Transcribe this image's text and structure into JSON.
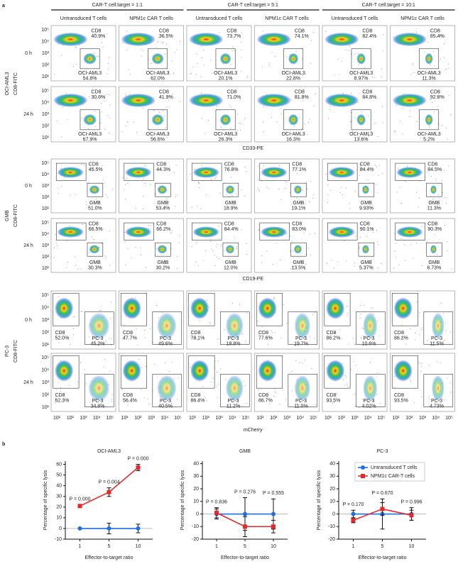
{
  "panel_a": {
    "label": "a",
    "column_groups": [
      "CAR-T cell:target = 1:1",
      "CAR-T cell:target = 5:1",
      "CAR-T cell:target = 10:1"
    ],
    "column_headers": [
      "Untransduced T cells",
      "NPM1c CAR T cells",
      "Untransduced T cells",
      "NPM1c CAR T cells",
      "Untransduced T cells",
      "NPM1c CAR T cells"
    ],
    "x_ticks": [
      "10¹",
      "10²",
      "10³",
      "10⁴",
      "10⁵"
    ],
    "y_ticks": [
      "10⁵",
      "10⁴",
      "10³",
      "10²",
      "10¹"
    ],
    "groups": [
      {
        "name": "OCI-AML3",
        "y_axis_label": "CD8-FITC",
        "x_axis_label": "CD33-PE",
        "rows": [
          {
            "time": "0 h",
            "plots": [
              {
                "gates": [
                  {
                    "label": "CD8",
                    "percent": "40.9%"
                  },
                  {
                    "label": "OCI-AML3",
                    "percent": "54.8%"
                  }
                ]
              },
              {
                "gates": [
                  {
                    "label": "CD8",
                    "percent": "36.5%"
                  },
                  {
                    "label": "OCI-AML3",
                    "percent": "62.0%"
                  }
                ]
              },
              {
                "gates": [
                  {
                    "label": "CD8",
                    "percent": "73.7%"
                  },
                  {
                    "label": "OCI-AML3",
                    "percent": "20.1%"
                  }
                ]
              },
              {
                "gates": [
                  {
                    "label": "CD8",
                    "percent": "74.1%"
                  },
                  {
                    "label": "OCI-AML3",
                    "percent": "22.8%"
                  }
                ]
              },
              {
                "gates": [
                  {
                    "label": "CD8",
                    "percent": "82.4%"
                  },
                  {
                    "label": "OCI-AML3",
                    "percent": "8.97%"
                  }
                ]
              },
              {
                "gates": [
                  {
                    "label": "CD8",
                    "percent": "85.4%"
                  },
                  {
                    "label": "OCI-AML3",
                    "percent": "11.3%"
                  }
                ]
              }
            ]
          },
          {
            "time": "24 h",
            "plots": [
              {
                "gates": [
                  {
                    "label": "CD8",
                    "percent": "30.6%"
                  },
                  {
                    "label": "OCI-AML3",
                    "percent": "67.9%"
                  }
                ]
              },
              {
                "gates": [
                  {
                    "label": "CD8",
                    "percent": "41.9%"
                  },
                  {
                    "label": "OCI-AML3",
                    "percent": "56.6%"
                  }
                ]
              },
              {
                "gates": [
                  {
                    "label": "CD8",
                    "percent": "71.0%"
                  },
                  {
                    "label": "OCI-AML3",
                    "percent": "26.3%"
                  }
                ]
              },
              {
                "gates": [
                  {
                    "label": "CD8",
                    "percent": "81.8%"
                  },
                  {
                    "label": "OCI-AML3",
                    "percent": "16.3%"
                  }
                ]
              },
              {
                "gates": [
                  {
                    "label": "CD8",
                    "percent": "84.8%"
                  },
                  {
                    "label": "OCI-AML3",
                    "percent": "13.6%"
                  }
                ]
              },
              {
                "gates": [
                  {
                    "label": "CD8",
                    "percent": "92.8%"
                  },
                  {
                    "label": "OCI-AML3",
                    "percent": "5.2%"
                  }
                ]
              }
            ]
          }
        ]
      },
      {
        "name": "GMB",
        "y_axis_label": "CD8-FITC",
        "x_axis_label": "CD19-PE",
        "rows": [
          {
            "time": "0 h",
            "plots": [
              {
                "gates": [
                  {
                    "label": "CD8",
                    "percent": "45.5%"
                  },
                  {
                    "label": "GMB",
                    "percent": "51.0%"
                  }
                ]
              },
              {
                "gates": [
                  {
                    "label": "CD8",
                    "percent": "44.3%"
                  },
                  {
                    "label": "GMB",
                    "percent": "53.4%"
                  }
                ]
              },
              {
                "gates": [
                  {
                    "label": "CD8",
                    "percent": "76.8%"
                  },
                  {
                    "label": "GMB",
                    "percent": "18.9%"
                  }
                ]
              },
              {
                "gates": [
                  {
                    "label": "CD8",
                    "percent": "77.1%"
                  },
                  {
                    "label": "GMB",
                    "percent": "19.1%"
                  }
                ]
              },
              {
                "gates": [
                  {
                    "label": "CD8",
                    "percent": "84.4%"
                  },
                  {
                    "label": "GMB",
                    "percent": "9.93%"
                  }
                ]
              },
              {
                "gates": [
                  {
                    "label": "CD8",
                    "percent": "84.5%"
                  },
                  {
                    "label": "GMB",
                    "percent": "11.3%"
                  }
                ]
              }
            ]
          },
          {
            "time": "24 h",
            "plots": [
              {
                "gates": [
                  {
                    "label": "CD8",
                    "percent": "66.5%"
                  },
                  {
                    "label": "GMB",
                    "percent": "30.3%"
                  }
                ]
              },
              {
                "gates": [
                  {
                    "label": "CD8",
                    "percent": "66.2%"
                  },
                  {
                    "label": "GMB",
                    "percent": "30.2%"
                  }
                ]
              },
              {
                "gates": [
                  {
                    "label": "CD8",
                    "percent": "84.4%"
                  },
                  {
                    "label": "GMB",
                    "percent": "12.0%"
                  }
                ]
              },
              {
                "gates": [
                  {
                    "label": "CD8",
                    "percent": "83.0%"
                  },
                  {
                    "label": "GMB",
                    "percent": "13.5%"
                  }
                ]
              },
              {
                "gates": [
                  {
                    "label": "CD8",
                    "percent": "90.1%"
                  },
                  {
                    "label": "GMB",
                    "percent": "5.37%"
                  }
                ]
              },
              {
                "gates": [
                  {
                    "label": "CD8",
                    "percent": "90.3%"
                  },
                  {
                    "label": "GMB",
                    "percent": "6.73%"
                  }
                ]
              }
            ]
          }
        ]
      },
      {
        "name": "PC-3",
        "y_axis_label": "CD8-FITC",
        "x_axis_label": "mCherry",
        "rows": [
          {
            "time": "0 h",
            "plots": [
              {
                "gates": [
                  {
                    "label": "CD8",
                    "percent": "52.0%"
                  },
                  {
                    "label": "PC-3",
                    "percent": "45.2%"
                  }
                ]
              },
              {
                "gates": [
                  {
                    "label": "CD8",
                    "percent": "47.7%"
                  },
                  {
                    "label": "PC-3",
                    "percent": "49.6%"
                  }
                ]
              },
              {
                "gates": [
                  {
                    "label": "CD8",
                    "percent": "78.1%"
                  },
                  {
                    "label": "PC-3",
                    "percent": "18.8%"
                  }
                ]
              },
              {
                "gates": [
                  {
                    "label": "CD8",
                    "percent": "77.6%"
                  },
                  {
                    "label": "PC-3",
                    "percent": "19.7%"
                  }
                ]
              },
              {
                "gates": [
                  {
                    "label": "CD8",
                    "percent": "86.2%"
                  },
                  {
                    "label": "PC-3",
                    "percent": "10.6%"
                  }
                ]
              },
              {
                "gates": [
                  {
                    "label": "CD8",
                    "percent": "86.2%"
                  },
                  {
                    "label": "PC-3",
                    "percent": "11.5%"
                  }
                ]
              }
            ]
          },
          {
            "time": "24 h",
            "plots": [
              {
                "gates": [
                  {
                    "label": "CD8",
                    "percent": "62.3%"
                  },
                  {
                    "label": "PC-3",
                    "percent": "34.8%"
                  }
                ]
              },
              {
                "gates": [
                  {
                    "label": "CD8",
                    "percent": "56.4%"
                  },
                  {
                    "label": "PC-3",
                    "percent": "40.5%"
                  }
                ]
              },
              {
                "gates": [
                  {
                    "label": "CD8",
                    "percent": "86.4%"
                  },
                  {
                    "label": "PC-3",
                    "percent": "11.2%"
                  }
                ]
              },
              {
                "gates": [
                  {
                    "label": "CD8",
                    "percent": "86.7%"
                  },
                  {
                    "label": "PC-3",
                    "percent": "11.0%"
                  }
                ]
              },
              {
                "gates": [
                  {
                    "label": "CD8",
                    "percent": "93.5%"
                  },
                  {
                    "label": "PC-3",
                    "percent": "4.02%"
                  }
                ]
              },
              {
                "gates": [
                  {
                    "label": "CD8",
                    "percent": "93.5%"
                  },
                  {
                    "label": "PC-3",
                    "percent": "4.73%"
                  }
                ]
              }
            ]
          }
        ]
      }
    ]
  },
  "panel_b": {
    "label": "b"
  },
  "chart_data": [
    {
      "type": "line",
      "title": "OCI-AML3",
      "x_label": "Effector-to-target ratio",
      "y_label": "Percentage of specific lysis",
      "categories": [
        "1",
        "5",
        "10"
      ],
      "ylim": [
        -10,
        63
      ],
      "yticks": [
        -10,
        0,
        10,
        20,
        30,
        40,
        50,
        60
      ],
      "series": [
        {
          "color": "#1f6fe0",
          "marker": "circle",
          "values": [
            0,
            0,
            0
          ],
          "errors": [
            0,
            5,
            4
          ]
        },
        {
          "color": "#e32a2a",
          "marker": "square",
          "values": [
            21,
            34,
            57
          ],
          "errors": [
            1,
            4,
            3
          ]
        }
      ],
      "annotations": [
        "P = 0.000",
        "P = 0.004",
        "P = 0.000"
      ]
    },
    {
      "type": "line",
      "title": "GMB",
      "x_label": "Effector-to-target ratio",
      "y_label": "Percentage of specific lysis",
      "categories": [
        "1",
        "5",
        "10"
      ],
      "ylim": [
        -20,
        42
      ],
      "yticks": [
        -20,
        -10,
        0,
        10,
        20,
        30,
        40
      ],
      "series": [
        {
          "color": "#1f6fe0",
          "marker": "circle",
          "values": [
            0,
            0,
            0
          ],
          "errors": [
            4,
            13,
            12
          ]
        },
        {
          "color": "#e32a2a",
          "marker": "square",
          "values": [
            1,
            -10,
            -10
          ],
          "errors": [
            4,
            8,
            5
          ]
        }
      ],
      "annotations": [
        "P = 0.836",
        "P = 0.276",
        "P = 0.555"
      ]
    },
    {
      "type": "line",
      "title": "PC-3",
      "x_label": "Effector-to-target ratio",
      "y_label": "Percentage of specific lysis",
      "categories": [
        "1",
        "5",
        "10"
      ],
      "ylim": [
        -20,
        42
      ],
      "yticks": [
        -20,
        -10,
        0,
        10,
        20,
        30,
        40
      ],
      "legend": "upper-right",
      "series": [
        {
          "name": "Untransduced T cells",
          "color": "#1f6fe0",
          "marker": "circle",
          "values": [
            0,
            0,
            0
          ],
          "errors": [
            3,
            12,
            5
          ]
        },
        {
          "name": "NPM1c CAR-T cells",
          "color": "#e32a2a",
          "marker": "square",
          "values": [
            -5,
            4,
            -1
          ],
          "errors": [
            2,
            5,
            4
          ]
        }
      ],
      "annotations": [
        "P = 0.170",
        "P = 0.670",
        "P = 0.996"
      ]
    }
  ]
}
